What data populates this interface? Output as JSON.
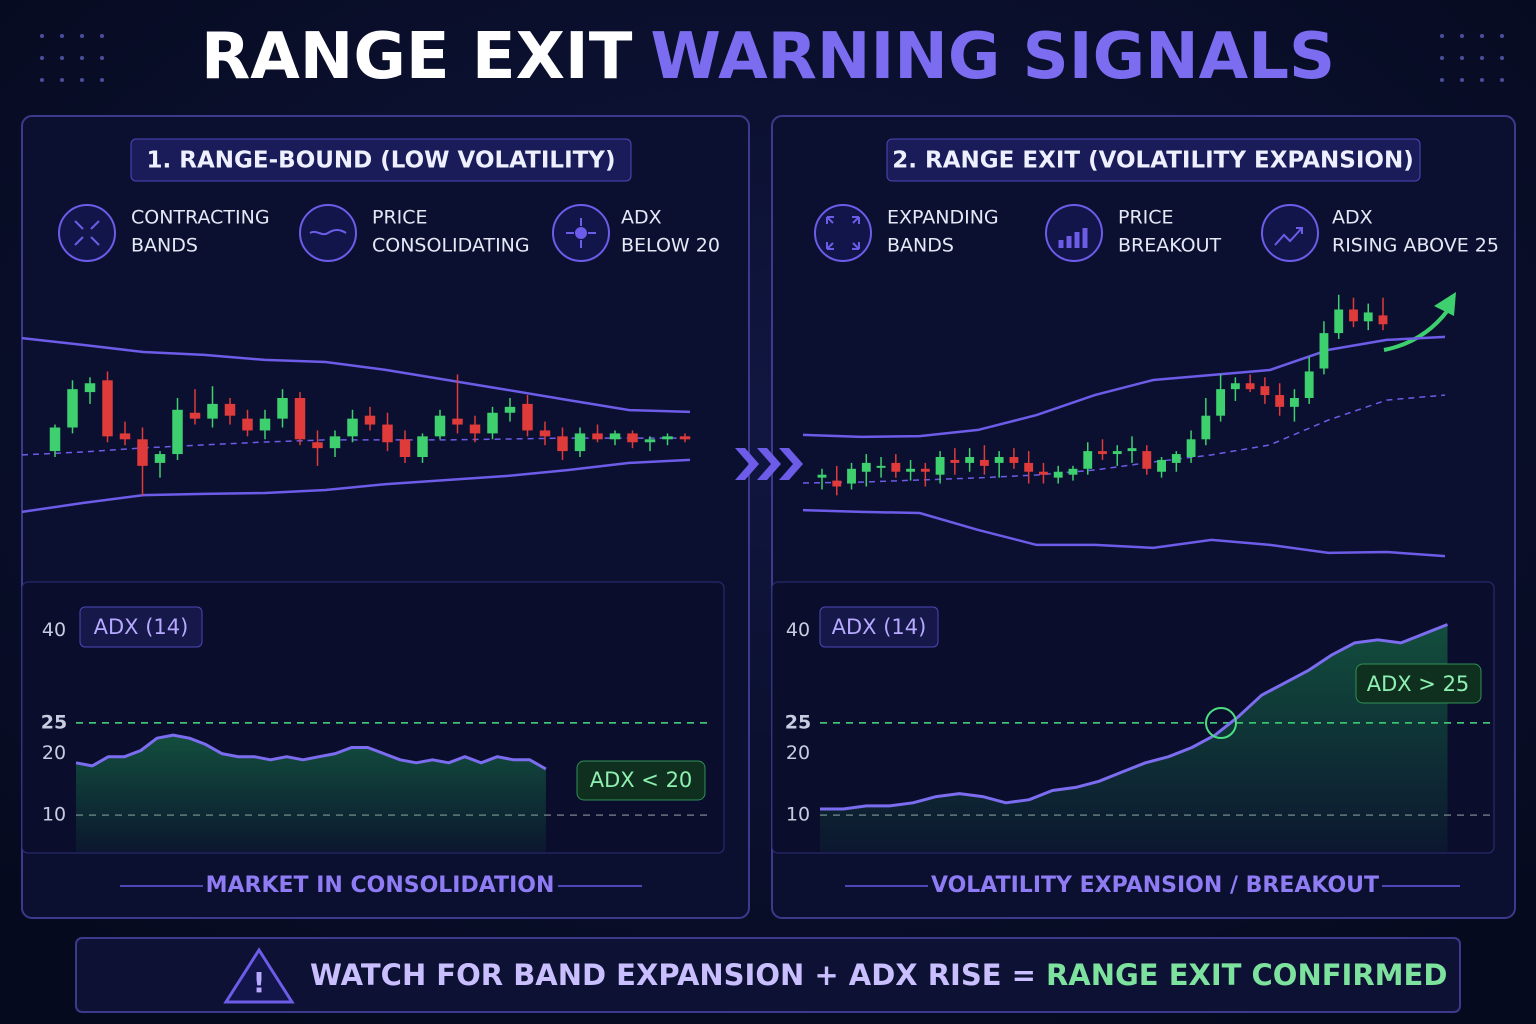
{
  "header": {
    "title_white": "RANGE EXIT",
    "title_accent": "WARNING SIGNALS"
  },
  "panels": [
    {
      "heading": "1. RANGE-BOUND (LOW VOLATILITY)",
      "features": [
        [
          "CONTRACTING",
          "BANDS"
        ],
        [
          "PRICE",
          "CONSOLIDATING"
        ],
        [
          "ADX",
          "BELOW 20"
        ]
      ],
      "footer": "MARKET IN CONSOLIDATION"
    },
    {
      "heading": "2. RANGE EXIT (VOLATILITY EXPANSION)",
      "features": [
        [
          "EXPANDING",
          "BANDS"
        ],
        [
          "PRICE",
          "BREAKOUT"
        ],
        [
          "ADX",
          "RISING ABOVE 25"
        ]
      ],
      "footer": "VOLATILITY EXPANSION / BREAKOUT"
    }
  ],
  "chart_data": [
    {
      "type": "candlestick",
      "ylim": [
        0,
        100
      ],
      "up_color": "#3ecf6e",
      "down_color": "#e03b3b",
      "band_color": "#6d5ce8",
      "ohlc": [
        [
          42,
          51,
          40,
          50
        ],
        [
          50,
          66,
          48,
          63
        ],
        [
          62,
          67,
          58,
          65
        ],
        [
          66,
          69,
          45,
          47
        ],
        [
          48,
          52,
          44,
          46
        ],
        [
          46,
          50,
          27,
          37
        ],
        [
          38,
          42,
          33,
          41
        ],
        [
          41,
          60,
          39,
          56
        ],
        [
          55,
          63,
          51,
          53
        ],
        [
          53,
          64,
          50,
          58
        ],
        [
          58,
          60,
          51,
          54
        ],
        [
          53,
          56,
          47,
          49
        ],
        [
          49,
          56,
          46,
          53
        ],
        [
          53,
          63,
          50,
          60
        ],
        [
          60,
          62,
          44,
          46
        ],
        [
          45,
          49,
          37,
          43
        ],
        [
          43,
          49,
          40,
          47
        ],
        [
          47,
          56,
          45,
          53
        ],
        [
          54,
          57,
          49,
          51
        ],
        [
          51,
          55,
          42,
          45
        ],
        [
          46,
          49,
          38,
          40
        ],
        [
          40,
          48,
          38,
          47
        ],
        [
          47,
          56,
          46,
          54
        ],
        [
          53,
          68,
          48,
          51
        ],
        [
          51,
          54,
          45,
          48
        ],
        [
          48,
          57,
          46,
          55
        ],
        [
          55,
          60,
          52,
          57
        ],
        [
          58,
          61,
          47,
          49
        ],
        [
          49,
          52,
          44,
          47
        ],
        [
          47,
          50,
          39,
          42
        ],
        [
          42,
          50,
          40,
          48
        ],
        [
          48,
          51,
          45,
          46
        ],
        [
          46,
          49,
          44,
          48
        ],
        [
          48,
          49,
          43,
          45
        ],
        [
          45,
          47,
          42,
          46
        ],
        [
          46,
          48,
          44,
          47
        ],
        [
          47,
          48,
          45,
          46
        ]
      ],
      "bands": {
        "upper": [
          80.3,
          78,
          75.6,
          74.6,
          72.9,
          72.2,
          69.5,
          66.1,
          62.7,
          59.3,
          55.9,
          55.3
        ],
        "middle": [
          40.7,
          41.7,
          43.1,
          44.1,
          45.1,
          45.8,
          45.8,
          45.8,
          46.1,
          46.4,
          46.4,
          46.4
        ],
        "lower": [
          21.4,
          24.4,
          27.1,
          27.5,
          27.8,
          28.8,
          30.8,
          32.2,
          33.6,
          35.6,
          38,
          39
        ]
      }
    },
    {
      "type": "candlestick",
      "ylim": [
        0,
        100
      ],
      "up_color": "#3ecf6e",
      "down_color": "#e03b3b",
      "band_color": "#6d5ce8",
      "ohlc": [
        [
          33,
          36,
          29,
          34
        ],
        [
          32,
          37,
          27,
          30
        ],
        [
          31,
          38,
          29,
          36
        ],
        [
          35,
          41,
          30,
          38
        ],
        [
          37,
          40,
          33,
          37
        ],
        [
          38,
          41,
          33,
          35
        ],
        [
          35,
          39,
          32,
          36
        ],
        [
          36,
          38,
          30,
          35
        ],
        [
          34,
          42,
          31,
          40
        ],
        [
          39,
          43,
          34,
          38
        ],
        [
          38,
          43,
          35,
          40
        ],
        [
          39,
          44,
          34,
          37
        ],
        [
          38,
          42,
          33,
          40
        ],
        [
          40,
          43,
          36,
          38
        ],
        [
          38,
          42,
          31,
          35
        ],
        [
          35,
          38,
          31,
          34
        ],
        [
          33,
          37,
          31,
          35
        ],
        [
          34,
          37,
          32,
          36
        ],
        [
          36,
          45,
          34,
          42
        ],
        [
          42,
          46,
          39,
          41
        ],
        [
          41,
          44,
          37,
          42
        ],
        [
          42,
          47,
          38,
          43
        ],
        [
          42,
          44,
          34,
          36
        ],
        [
          35,
          40,
          33,
          39
        ],
        [
          38,
          42,
          35,
          41
        ],
        [
          40,
          49,
          38,
          46
        ],
        [
          46,
          60,
          44,
          54
        ],
        [
          54,
          68,
          52,
          63
        ],
        [
          63,
          67,
          59,
          65
        ],
        [
          65,
          68,
          62,
          63
        ],
        [
          64,
          67,
          58,
          61
        ],
        [
          61,
          65,
          54,
          57
        ],
        [
          57,
          63,
          52,
          60
        ],
        [
          60,
          74,
          58,
          69
        ],
        [
          70,
          86,
          68,
          82
        ],
        [
          82,
          95,
          80,
          90
        ],
        [
          90,
          94,
          84,
          86
        ],
        [
          86,
          92,
          83,
          89
        ],
        [
          88,
          94,
          83,
          85
        ]
      ],
      "bands": {
        "upper": [
          47.5,
          46.8,
          47.1,
          49.2,
          54.2,
          61,
          66.1,
          67.8,
          69.5,
          76.3,
          79.7,
          80.7
        ],
        "middle": [
          31.2,
          31.5,
          32.2,
          32.9,
          33.9,
          35.6,
          38.3,
          40.7,
          44.1,
          52.5,
          59.3,
          61
        ],
        "lower": [
          22,
          21.4,
          21,
          15.3,
          10.2,
          10.2,
          9.2,
          11.9,
          10.2,
          7.5,
          7.8,
          6.4
        ]
      }
    },
    {
      "type": "line",
      "label": "ADX (14)",
      "badge": "ADX < 20",
      "ylim": [
        4,
        44
      ],
      "yticks": [
        10,
        20,
        25,
        40
      ],
      "color": "#7c6cf0",
      "fill": "#22c55e",
      "reference_lines": [
        {
          "value": 25,
          "color": "#4ade80"
        },
        {
          "value": 10,
          "color": "#6b7280"
        }
      ],
      "values": [
        18.5,
        18,
        19.5,
        19.5,
        20.5,
        22.5,
        23,
        22.5,
        21.5,
        20,
        19.5,
        19.5,
        19,
        19.5,
        19,
        19.5,
        20,
        21,
        21,
        20,
        19,
        18.5,
        19,
        18.5,
        19.5,
        18.5,
        19.5,
        19,
        19,
        17.5,
        null,
        null,
        null,
        null,
        null,
        null,
        null,
        null,
        null,
        null
      ]
    },
    {
      "type": "line",
      "label": "ADX (14)",
      "badge": "ADX > 25",
      "ylim": [
        4,
        44
      ],
      "yticks": [
        10,
        20,
        25,
        40
      ],
      "color": "#7c6cf0",
      "fill": "#22c55e",
      "reference_lines": [
        {
          "value": 25,
          "color": "#4ade80"
        },
        {
          "value": 10,
          "color": "#6b7280"
        }
      ],
      "values": [
        11,
        11,
        11.5,
        11.5,
        12,
        13,
        13.5,
        13,
        12,
        12.5,
        14,
        14.5,
        15.5,
        17,
        18.5,
        19.5,
        21,
        23,
        26,
        29.5,
        31.5,
        33.5,
        36,
        38,
        38.5,
        38,
        39.5,
        41,
        null,
        null
      ]
    }
  ],
  "banner": {
    "text": "WATCH FOR BAND EXPANSION + ADX RISE =",
    "highlight": "RANGE EXIT CONFIRMED"
  }
}
